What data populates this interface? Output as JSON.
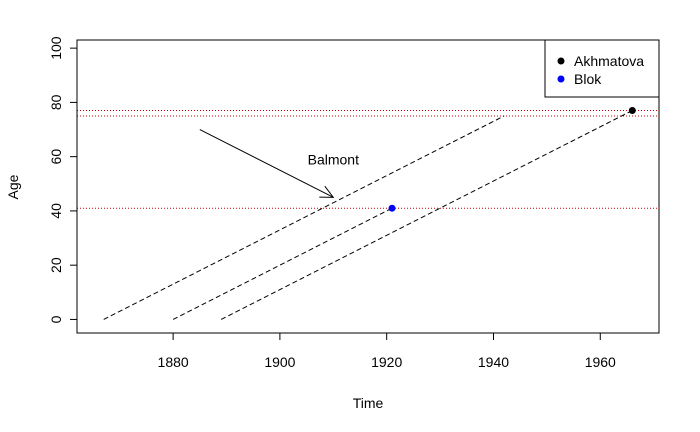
{
  "chart_data": {
    "type": "line",
    "xlabel": "Time",
    "ylabel": "Age",
    "xlim": [
      1862,
      1971
    ],
    "ylim": [
      -5,
      103
    ],
    "x_ticks": [
      1880,
      1900,
      1920,
      1940,
      1960
    ],
    "y_ticks": [
      0,
      20,
      40,
      60,
      80,
      100
    ],
    "lifelines": [
      {
        "x": [
          1867,
          1942
        ],
        "y": [
          0,
          75
        ]
      },
      {
        "x": [
          1880,
          1921
        ],
        "y": [
          0,
          41
        ]
      },
      {
        "x": [
          1889,
          1966
        ],
        "y": [
          0,
          77
        ]
      }
    ],
    "points": [
      {
        "name": "Akhmatova",
        "x": 1966,
        "y": 77,
        "color": "#000000"
      },
      {
        "name": "Blok",
        "x": 1921,
        "y": 41,
        "color": "#0000ff"
      }
    ],
    "hlines": [
      {
        "y": 77,
        "color": "#cc0000"
      },
      {
        "y": 75,
        "color": "#cc0000"
      },
      {
        "y": 41,
        "color": "#cc0000"
      }
    ],
    "annotation": {
      "label": "Balmont",
      "label_x": 1910,
      "label_y": 59,
      "arrow_from": [
        1885,
        70
      ],
      "arrow_to": [
        1910,
        45
      ]
    },
    "legend": {
      "position": "top-right",
      "entries": [
        {
          "label": "Akhmatova",
          "color": "#000000"
        },
        {
          "label": "Blok",
          "color": "#0000ff"
        }
      ]
    }
  }
}
